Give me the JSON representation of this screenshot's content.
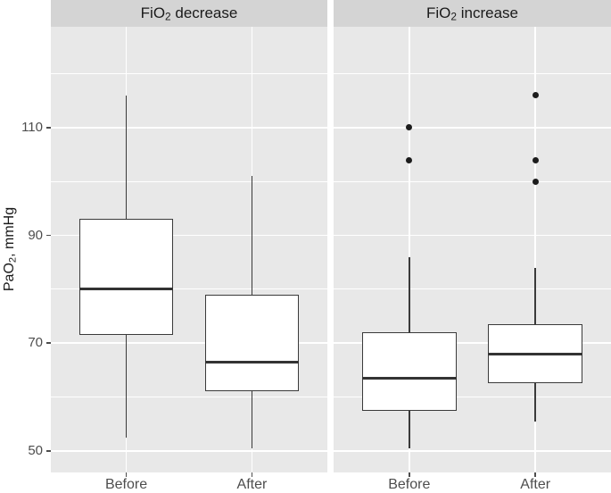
{
  "colors": {
    "figure_background": "#ffffff",
    "panel_background": "#e8e8e8",
    "strip_background": "#d4d4d4",
    "gridline": "#ffffff",
    "box_outline": "#3a3a3a",
    "median_line": "#333333",
    "outlier_dot": "#1c1c1c",
    "axis_text": "#4d4d4d",
    "title_text": "#1a1a1a"
  },
  "chart_data": {
    "type": "boxplot",
    "title": "",
    "xlabel": "",
    "ylabel": "PaO2, mmHg",
    "ylabel_parts": {
      "base": "PaO",
      "sub": "2",
      "rest": ", mmHg"
    },
    "ylim": [
      46.0,
      128.7
    ],
    "yticks": [
      50,
      70,
      90,
      110
    ],
    "yticks_minor": [
      60,
      80,
      100,
      120
    ],
    "grid": "on",
    "legend": "none",
    "categories": [
      "Before",
      "After"
    ],
    "facets": [
      {
        "label": "FiO2 decrease",
        "label_parts": {
          "base": "FiO",
          "sub": "2",
          "rest": " decrease"
        },
        "boxes": [
          {
            "category": "Before",
            "whisker_low": 52.5,
            "q1": 71.5,
            "median": 80,
            "q3": 93,
            "whisker_high": 116,
            "outliers": []
          },
          {
            "category": "After",
            "whisker_low": 50.5,
            "q1": 61,
            "median": 66.5,
            "q3": 79,
            "whisker_high": 101,
            "outliers": []
          }
        ]
      },
      {
        "label": "FiO2 increase",
        "label_parts": {
          "base": "FiO",
          "sub": "2",
          "rest": " increase"
        },
        "boxes": [
          {
            "category": "Before",
            "whisker_low": 50.5,
            "q1": 57.5,
            "median": 63.5,
            "q3": 72,
            "whisker_high": 86,
            "outliers": [
              104,
              110
            ]
          },
          {
            "category": "After",
            "whisker_low": 55.5,
            "q1": 62.5,
            "median": 68,
            "q3": 73.5,
            "whisker_high": 84,
            "outliers": [
              100,
              104,
              116
            ]
          }
        ]
      }
    ]
  }
}
